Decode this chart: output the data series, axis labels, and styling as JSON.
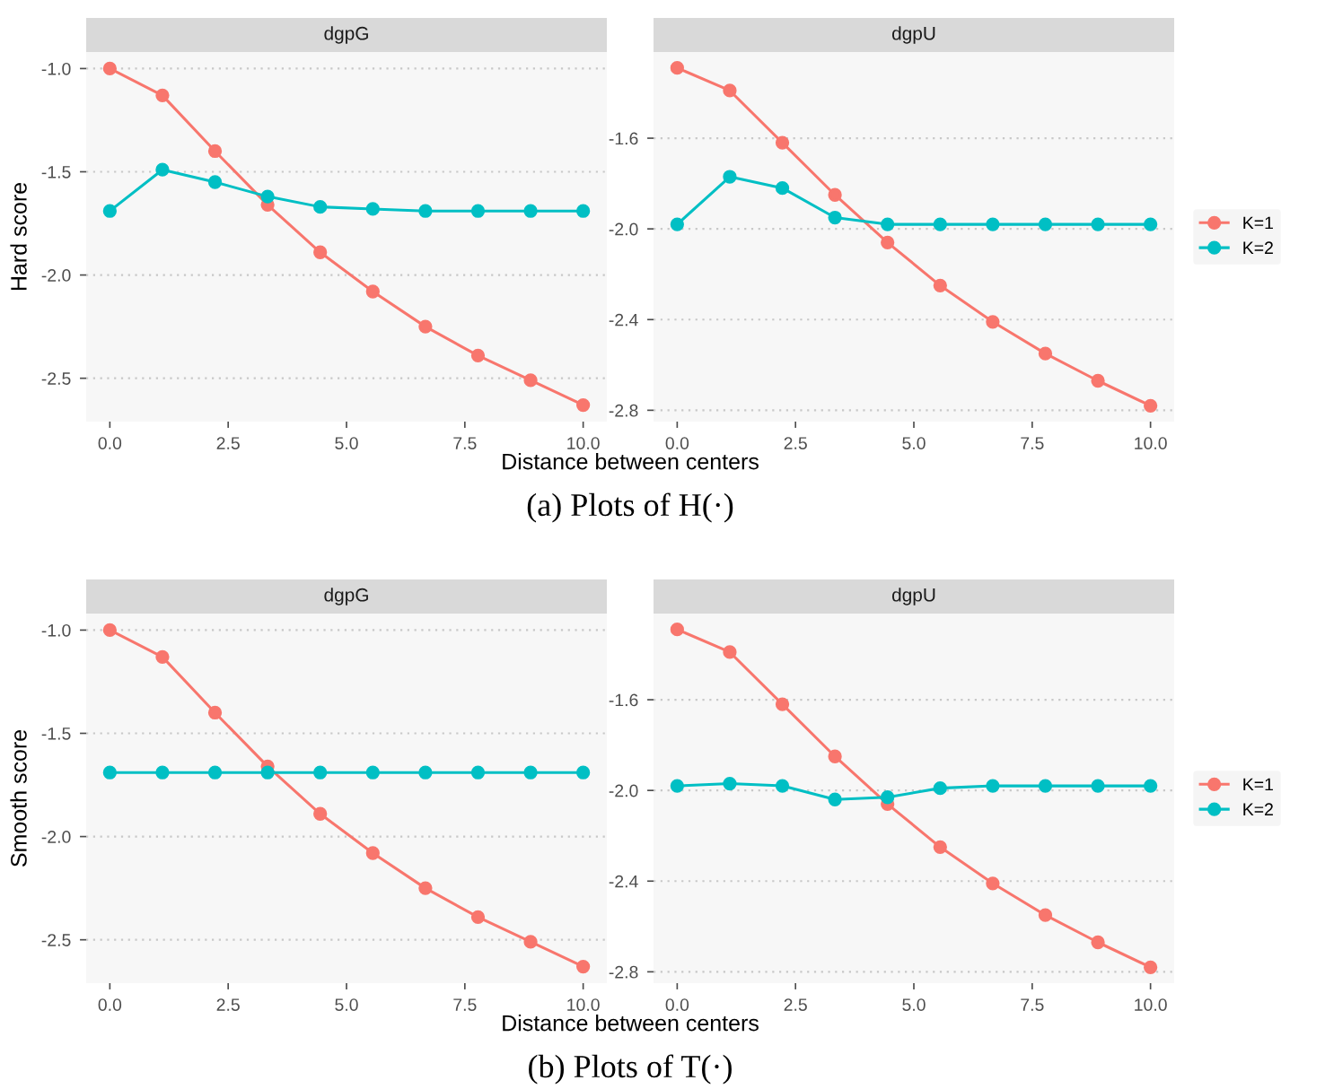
{
  "chart_data": [
    {
      "type": "line",
      "title": "dgpG",
      "xlabel": "Distance between centers",
      "ylabel": "Hard score",
      "annotations": [
        "(a) Plots of H(·)"
      ],
      "x": [
        0,
        1.111,
        2.222,
        3.333,
        4.444,
        5.556,
        6.667,
        7.778,
        8.889,
        10
      ],
      "xlim": [
        -0.5,
        10.5
      ],
      "xticks": [
        {
          "value": 0,
          "label": "0.0"
        },
        {
          "value": 2.5,
          "label": "2.5"
        },
        {
          "value": 5,
          "label": "5.0"
        },
        {
          "value": 7.5,
          "label": "7.5"
        },
        {
          "value": 10,
          "label": "10.0"
        }
      ],
      "ylim": [
        -2.71,
        -0.92
      ],
      "yticks": [
        {
          "value": -1,
          "label": "-1.0"
        },
        {
          "value": -1.5,
          "label": "-1.5"
        },
        {
          "value": -2,
          "label": "-2.0"
        },
        {
          "value": -2.5,
          "label": "-2.5"
        }
      ],
      "grid": "y",
      "marker": "circle",
      "line_style": "solid",
      "legend": false,
      "series": [
        {
          "color": "#f8766d",
          "values": [
            -1.0,
            -1.13,
            -1.4,
            -1.66,
            -1.89,
            -2.08,
            -2.25,
            -2.39,
            -2.51,
            -2.63
          ]
        },
        {
          "color": "#00bfc4",
          "values": [
            -1.69,
            -1.49,
            -1.55,
            -1.62,
            -1.67,
            -1.68,
            -1.69,
            -1.69,
            -1.69,
            -1.69
          ]
        }
      ]
    },
    {
      "type": "line",
      "title": "dgpU",
      "x": [
        0,
        1.111,
        2.222,
        3.333,
        4.444,
        5.556,
        6.667,
        7.778,
        8.889,
        10
      ],
      "xlim": [
        -0.5,
        10.5
      ],
      "xticks": [
        {
          "value": 0,
          "label": "0.0"
        },
        {
          "value": 2.5,
          "label": "2.5"
        },
        {
          "value": 5,
          "label": "5.0"
        },
        {
          "value": 7.5,
          "label": "7.5"
        },
        {
          "value": 10,
          "label": "10.0"
        }
      ],
      "ylim": [
        -2.85,
        -1.22
      ],
      "yticks": [
        {
          "value": -1.6,
          "label": "-1.6"
        },
        {
          "value": -2.0,
          "label": "-2.0"
        },
        {
          "value": -2.4,
          "label": "-2.4"
        },
        {
          "value": -2.8,
          "label": "-2.8"
        }
      ],
      "grid": "y",
      "marker": "circle",
      "line_style": "solid",
      "legend": "right",
      "series": [
        {
          "name": "K=1",
          "color": "#f8766d",
          "values": [
            -1.29,
            -1.39,
            -1.62,
            -1.85,
            -2.06,
            -2.25,
            -2.41,
            -2.55,
            -2.67,
            -2.78
          ]
        },
        {
          "name": "K=2",
          "color": "#00bfc4",
          "values": [
            -1.98,
            -1.77,
            -1.82,
            -1.95,
            -1.98,
            -1.98,
            -1.98,
            -1.98,
            -1.98,
            -1.98
          ]
        }
      ]
    },
    {
      "type": "line",
      "title": "dgpG",
      "xlabel": "Distance between centers",
      "ylabel": "Smooth score",
      "annotations": [
        "(b) Plots of T(·)"
      ],
      "x": [
        0,
        1.111,
        2.222,
        3.333,
        4.444,
        5.556,
        6.667,
        7.778,
        8.889,
        10
      ],
      "xlim": [
        -0.5,
        10.5
      ],
      "xticks": [
        {
          "value": 0,
          "label": "0.0"
        },
        {
          "value": 2.5,
          "label": "2.5"
        },
        {
          "value": 5,
          "label": "5.0"
        },
        {
          "value": 7.5,
          "label": "7.5"
        },
        {
          "value": 10,
          "label": "10.0"
        }
      ],
      "ylim": [
        -2.71,
        -0.92
      ],
      "yticks": [
        {
          "value": -1,
          "label": "-1.0"
        },
        {
          "value": -1.5,
          "label": "-1.5"
        },
        {
          "value": -2,
          "label": "-2.0"
        },
        {
          "value": -2.5,
          "label": "-2.5"
        }
      ],
      "grid": "y",
      "marker": "circle",
      "line_style": "solid",
      "legend": false,
      "series": [
        {
          "color": "#f8766d",
          "values": [
            -1.0,
            -1.13,
            -1.4,
            -1.66,
            -1.89,
            -2.08,
            -2.25,
            -2.39,
            -2.51,
            -2.63
          ]
        },
        {
          "color": "#00bfc4",
          "values": [
            -1.69,
            -1.69,
            -1.69,
            -1.69,
            -1.69,
            -1.69,
            -1.69,
            -1.69,
            -1.69,
            -1.69
          ]
        }
      ]
    },
    {
      "type": "line",
      "title": "dgpU",
      "x": [
        0,
        1.111,
        2.222,
        3.333,
        4.444,
        5.556,
        6.667,
        7.778,
        8.889,
        10
      ],
      "xlim": [
        -0.5,
        10.5
      ],
      "xticks": [
        {
          "value": 0,
          "label": "0.0"
        },
        {
          "value": 2.5,
          "label": "2.5"
        },
        {
          "value": 5,
          "label": "5.0"
        },
        {
          "value": 7.5,
          "label": "7.5"
        },
        {
          "value": 10,
          "label": "10.0"
        }
      ],
      "ylim": [
        -2.85,
        -1.22
      ],
      "yticks": [
        {
          "value": -1.6,
          "label": "-1.6"
        },
        {
          "value": -2.0,
          "label": "-2.0"
        },
        {
          "value": -2.4,
          "label": "-2.4"
        },
        {
          "value": -2.8,
          "label": "-2.8"
        }
      ],
      "grid": "y",
      "marker": "circle",
      "line_style": "solid",
      "legend": "right",
      "series": [
        {
          "name": "K=1",
          "color": "#f8766d",
          "values": [
            -1.29,
            -1.39,
            -1.62,
            -1.85,
            -2.06,
            -2.25,
            -2.41,
            -2.55,
            -2.67,
            -2.78
          ]
        },
        {
          "name": "K=2",
          "color": "#00bfc4",
          "values": [
            -1.98,
            -1.97,
            -1.98,
            -2.04,
            -2.03,
            -1.99,
            -1.98,
            -1.98,
            -1.98,
            -1.98
          ]
        }
      ]
    }
  ]
}
